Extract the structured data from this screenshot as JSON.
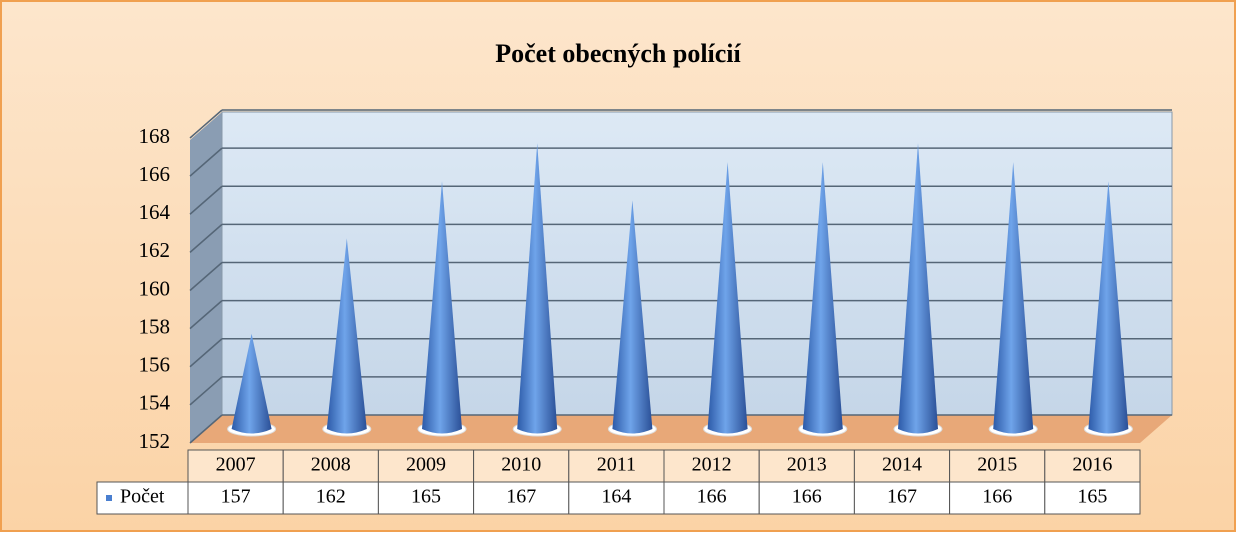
{
  "chart_data": {
    "type": "cone",
    "title": "Počet obecných polícií",
    "categories": [
      "2007",
      "2008",
      "2009",
      "2010",
      "2011",
      "2012",
      "2013",
      "2014",
      "2015",
      "2016"
    ],
    "series": [
      {
        "name": "Počet",
        "color": "#4a7fd0",
        "values": [
          157,
          162,
          165,
          167,
          164,
          166,
          166,
          167,
          166,
          165
        ]
      }
    ],
    "ylim": [
      152,
      168
    ],
    "yticks": [
      152,
      154,
      156,
      158,
      160,
      162,
      164,
      166,
      168
    ],
    "grid": true,
    "legend": "table"
  }
}
